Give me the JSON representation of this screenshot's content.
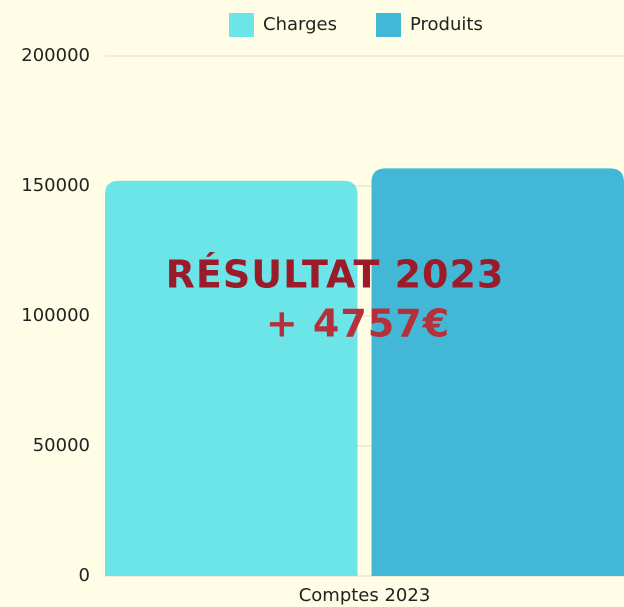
{
  "chart_data": {
    "type": "bar",
    "categories": [
      "Comptes 2023"
    ],
    "series": [
      {
        "name": "Charges",
        "color": "#6ce5e8",
        "values": [
          152000
        ]
      },
      {
        "name": "Produits",
        "color": "#42b8d6",
        "values": [
          156757
        ]
      }
    ],
    "ylim": [
      0,
      200000
    ],
    "yticks": [
      0,
      50000,
      100000,
      150000,
      200000
    ],
    "grid": true,
    "legend": "top",
    "annotations": [
      {
        "text": "RÉSULTAT 2023",
        "color": "#9b1b2a"
      },
      {
        "text": "+ 4757€",
        "color": "#b5303a"
      }
    ]
  }
}
